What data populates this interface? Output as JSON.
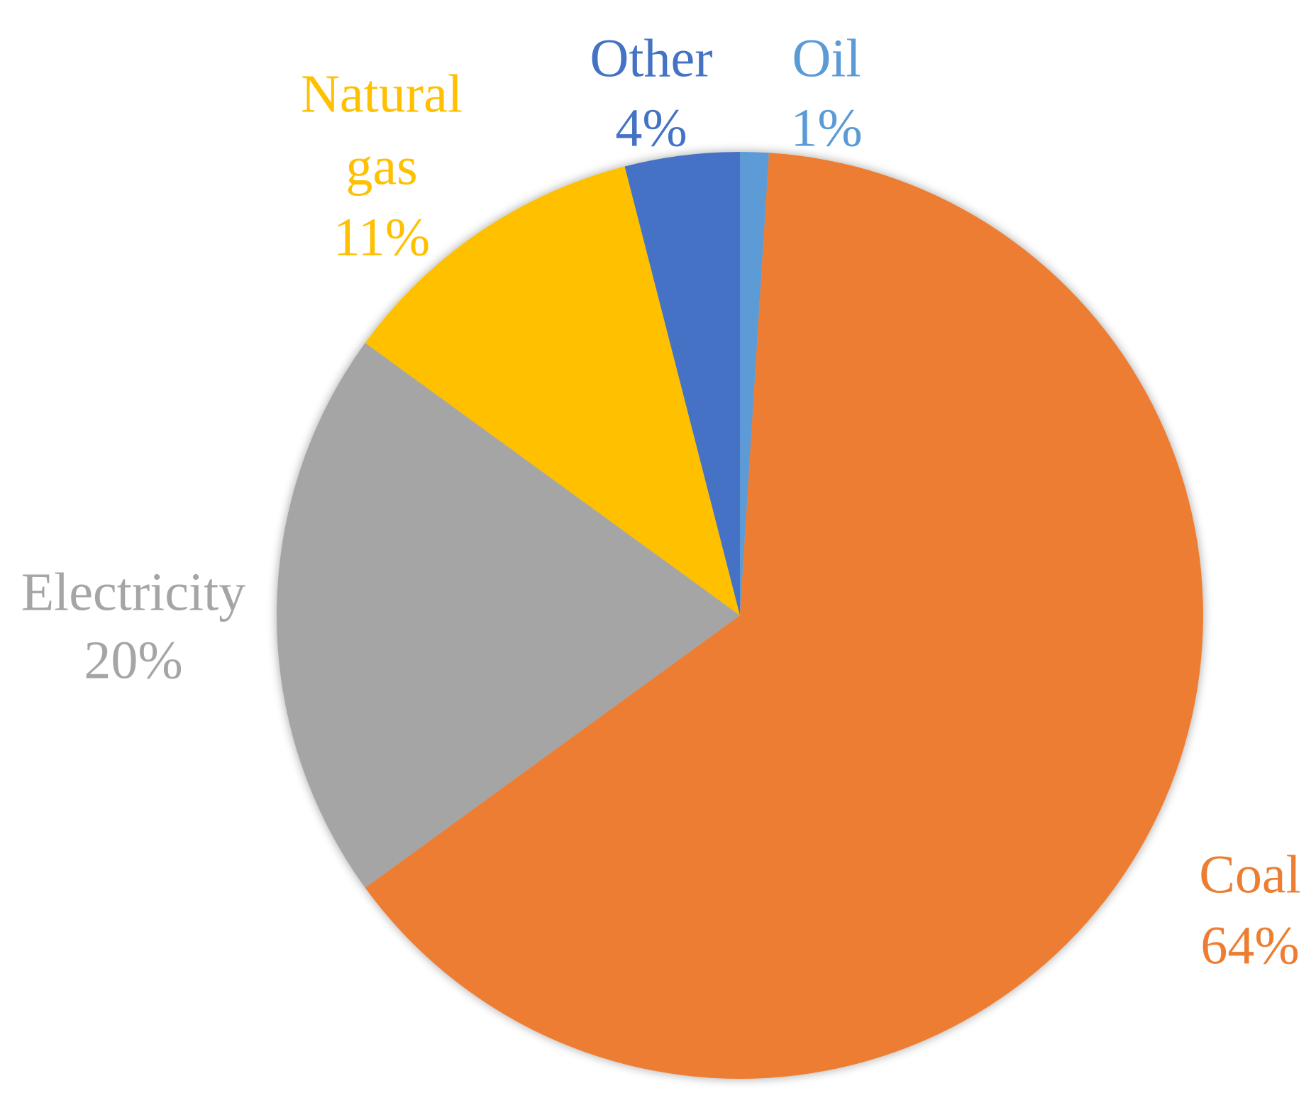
{
  "chart_data": {
    "type": "pie",
    "title": "",
    "slices": [
      {
        "name": "Oil",
        "value": 1,
        "label_value": "1%",
        "color": "#5B9BD5"
      },
      {
        "name": "Coal",
        "value": 64,
        "label_value": "64%",
        "color": "#ED7D31"
      },
      {
        "name": "Electricity",
        "value": 20,
        "label_value": "20%",
        "color": "#A5A5A5"
      },
      {
        "name": "Natural gas",
        "value": 11,
        "label_value": "11%",
        "color": "#FFC000"
      },
      {
        "name": "Other",
        "value": 4,
        "label_value": "4%",
        "color": "#4472C4"
      }
    ],
    "start_angle": "12 o'clock",
    "direction": "clockwise",
    "legend": "none",
    "data_labels": "outside-end"
  }
}
